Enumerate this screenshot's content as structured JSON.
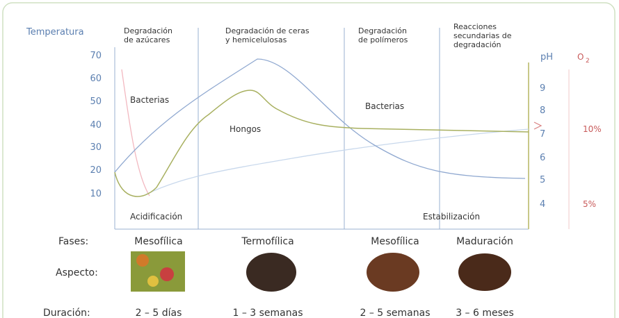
{
  "left_axis": {
    "title": "Temperatura",
    "ticks": [
      "70",
      "60",
      "50",
      "40",
      "30",
      "20",
      "10"
    ]
  },
  "ph_axis": {
    "title": "pH",
    "ticks": [
      "9",
      "8",
      "7",
      "6",
      "5",
      "4"
    ]
  },
  "o2_axis": {
    "title": "O",
    "subscript": "2",
    "ticks": [
      "10%",
      "5%"
    ]
  },
  "processes": [
    [
      "Degradación",
      "de azúcares"
    ],
    [
      "Degradación de ceras",
      "y hemicelulosas"
    ],
    [
      "Degradación",
      "de polímeros"
    ],
    [
      "Reacciones",
      "secundarias de",
      "degradación"
    ]
  ],
  "annotations": [
    "Bacterias",
    "Hongos",
    "Bacterias",
    "Acidificación",
    "Estabilización"
  ],
  "rows": {
    "phases": "Fases:",
    "aspect": "Aspecto:",
    "duration": "Duración:"
  },
  "phases": [
    "Mesofílica",
    "Termofílica",
    "Mesofílica",
    "Maduración"
  ],
  "durations": [
    "2 – 5 días",
    "1 – 3 semanas",
    "2 – 5 semanas",
    "3 – 6 meses"
  ]
}
